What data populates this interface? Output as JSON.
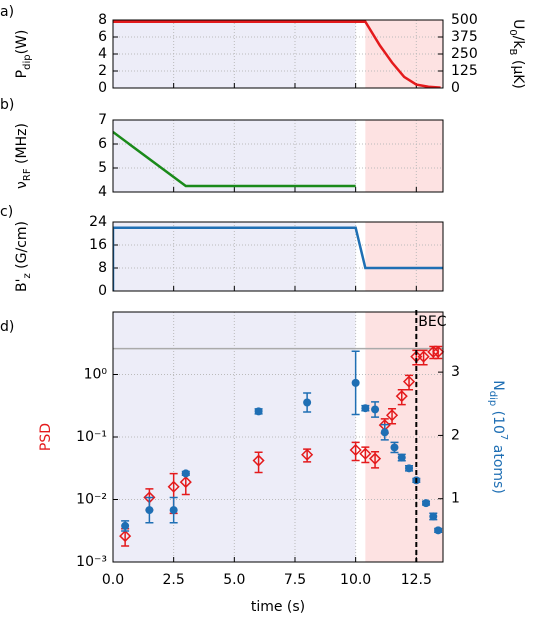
{
  "chart_data": [
    {
      "type": "line",
      "label": "a)",
      "ylabel": [
        {
          "text": "P"
        },
        {
          "text": "dip",
          "script": "sub"
        },
        {
          "text": "(W)"
        }
      ],
      "y2label": [
        {
          "text": "U"
        },
        {
          "text": "0",
          "script": "sub"
        },
        {
          "text": "/k"
        },
        {
          "text": "B",
          "script": "sub"
        },
        {
          "text": " (µK)"
        }
      ],
      "xlim": [
        0,
        13.6
      ],
      "ylim": [
        0,
        8
      ],
      "yticks": [
        0,
        2,
        4,
        6,
        8
      ],
      "y2lim": [
        0,
        500
      ],
      "y2ticks": [
        0,
        125,
        250,
        375,
        500
      ],
      "grid": true,
      "shading": [
        {
          "from": 0,
          "to": 10,
          "color": "#ededf8"
        },
        {
          "from": 10.4,
          "to": 13.7,
          "color": "#fde2e2"
        }
      ],
      "series": [
        {
          "color": "#e41a1c",
          "x": [
            0,
            10.4,
            11,
            11.5,
            12,
            12.5,
            13,
            13.5
          ],
          "values": [
            7.8,
            7.8,
            5,
            3,
            1.3,
            0.4,
            0.15,
            0.05
          ]
        }
      ]
    },
    {
      "type": "line",
      "label": "b)",
      "ylabel": [
        {
          "text": "ν"
        },
        {
          "text": "RF",
          "script": "sub"
        },
        {
          "text": " (MHz)"
        }
      ],
      "xlim": [
        0,
        13.6
      ],
      "ylim": [
        4,
        7
      ],
      "yticks": [
        4,
        5,
        6,
        7
      ],
      "grid": true,
      "shading": [
        {
          "from": 0,
          "to": 10,
          "color": "#ededf8"
        },
        {
          "from": 10.4,
          "to": 13.7,
          "color": "#fde2e2"
        }
      ],
      "series": [
        {
          "color": "#1a8a1a",
          "x": [
            0,
            3,
            10
          ],
          "values": [
            6.5,
            4.25,
            4.25
          ]
        }
      ]
    },
    {
      "type": "line",
      "label": "c)",
      "ylabel": [
        {
          "text": "B'"
        },
        {
          "text": "z",
          "script": "sub"
        },
        {
          "text": " (G/cm)"
        }
      ],
      "xlim": [
        0,
        13.6
      ],
      "ylim": [
        0,
        24
      ],
      "yticks": [
        0,
        8,
        16,
        24
      ],
      "grid": true,
      "shading": [
        {
          "from": 0,
          "to": 10,
          "color": "#ededf8"
        },
        {
          "from": 10.4,
          "to": 13.7,
          "color": "#fde2e2"
        }
      ],
      "series": [
        {
          "color": "#1f6fb4",
          "x": [
            0,
            0,
            10,
            10.4,
            13.6
          ],
          "values": [
            0,
            22,
            22,
            8,
            8
          ]
        }
      ]
    },
    {
      "type": "scatter",
      "label": "d)",
      "ylabel": [
        {
          "text": "PSD"
        }
      ],
      "y2label": [
        {
          "text": "N"
        },
        {
          "text": "dip",
          "script": "sub"
        },
        {
          "text": " (10"
        },
        {
          "text": "7",
          "script": "super"
        },
        {
          "text": " atoms)"
        }
      ],
      "xlabel": "time (s)",
      "xlim": [
        0,
        13.6
      ],
      "xticks": [
        {
          "value": 0,
          "label": "0.0"
        },
        {
          "value": 2.5,
          "label": "2.5"
        },
        {
          "value": 5,
          "label": "5.0"
        },
        {
          "value": 7.5,
          "label": "7.5"
        },
        {
          "value": 10,
          "label": "10.0"
        },
        {
          "value": 12.5,
          "label": "12.5"
        }
      ],
      "ylog": true,
      "ylim": [
        0.001,
        10
      ],
      "yticks": [
        {
          "value": 0.001,
          "label": "10⁻³"
        },
        {
          "value": 0.01,
          "label": "10⁻²"
        },
        {
          "value": 0.1,
          "label": "10⁻¹"
        },
        {
          "value": 1,
          "label": "10⁰"
        }
      ],
      "y2lim": [
        0,
        3.95
      ],
      "y2ticks": [
        1,
        2,
        3
      ],
      "grid": true,
      "shading": [
        {
          "from": 0,
          "to": 10,
          "color": "#ededf8"
        },
        {
          "from": 10.4,
          "to": 13.7,
          "color": "#fde2e2"
        }
      ],
      "hline": 2.6,
      "hline_color": "#aaaaaa",
      "vline": 12.5,
      "vline_label": "BEC",
      "series": [
        {
          "color": "#e41a1c",
          "marker": "diamond",
          "x": [
            0.5,
            1.5,
            2.5,
            3.0,
            6.0,
            8.0,
            10.0,
            10.4,
            10.8,
            11.2,
            11.5,
            11.9,
            12.2,
            12.5,
            12.8,
            13.2,
            13.4
          ],
          "values": [
            0.0026,
            0.0108,
            0.016,
            0.019,
            0.042,
            0.052,
            0.062,
            0.054,
            0.045,
            0.155,
            0.223,
            0.45,
            0.77,
            1.93,
            1.93,
            2.3,
            2.3
          ],
          "errors": [
            0.0008,
            0.004,
            0.01,
            0.007,
            0.015,
            0.012,
            0.02,
            0.015,
            0.013,
            0.04,
            0.06,
            0.12,
            0.2,
            0.5,
            0.5,
            0.5,
            0.5
          ]
        },
        {
          "color": "#1f6fb4",
          "marker": "circle",
          "axis": "y2",
          "x": [
            0.5,
            1.5,
            2.5,
            3.0,
            6.0,
            8.0,
            10.0,
            10.4,
            10.8,
            11.2,
            11.6,
            11.9,
            12.2,
            12.5,
            12.9,
            13.2,
            13.4
          ],
          "values": [
            0.57,
            0.82,
            0.82,
            1.4,
            2.38,
            2.52,
            2.83,
            2.43,
            2.41,
            2.05,
            1.81,
            1.65,
            1.48,
            1.29,
            0.93,
            0.72,
            0.5
          ],
          "errors": [
            0.08,
            0.2,
            0.2,
            0.03,
            0.04,
            0.15,
            0.5,
            0.04,
            0.12,
            0.12,
            0.08,
            0.05,
            0.04,
            0.03,
            0.03,
            0.05,
            0.03
          ]
        }
      ]
    }
  ]
}
